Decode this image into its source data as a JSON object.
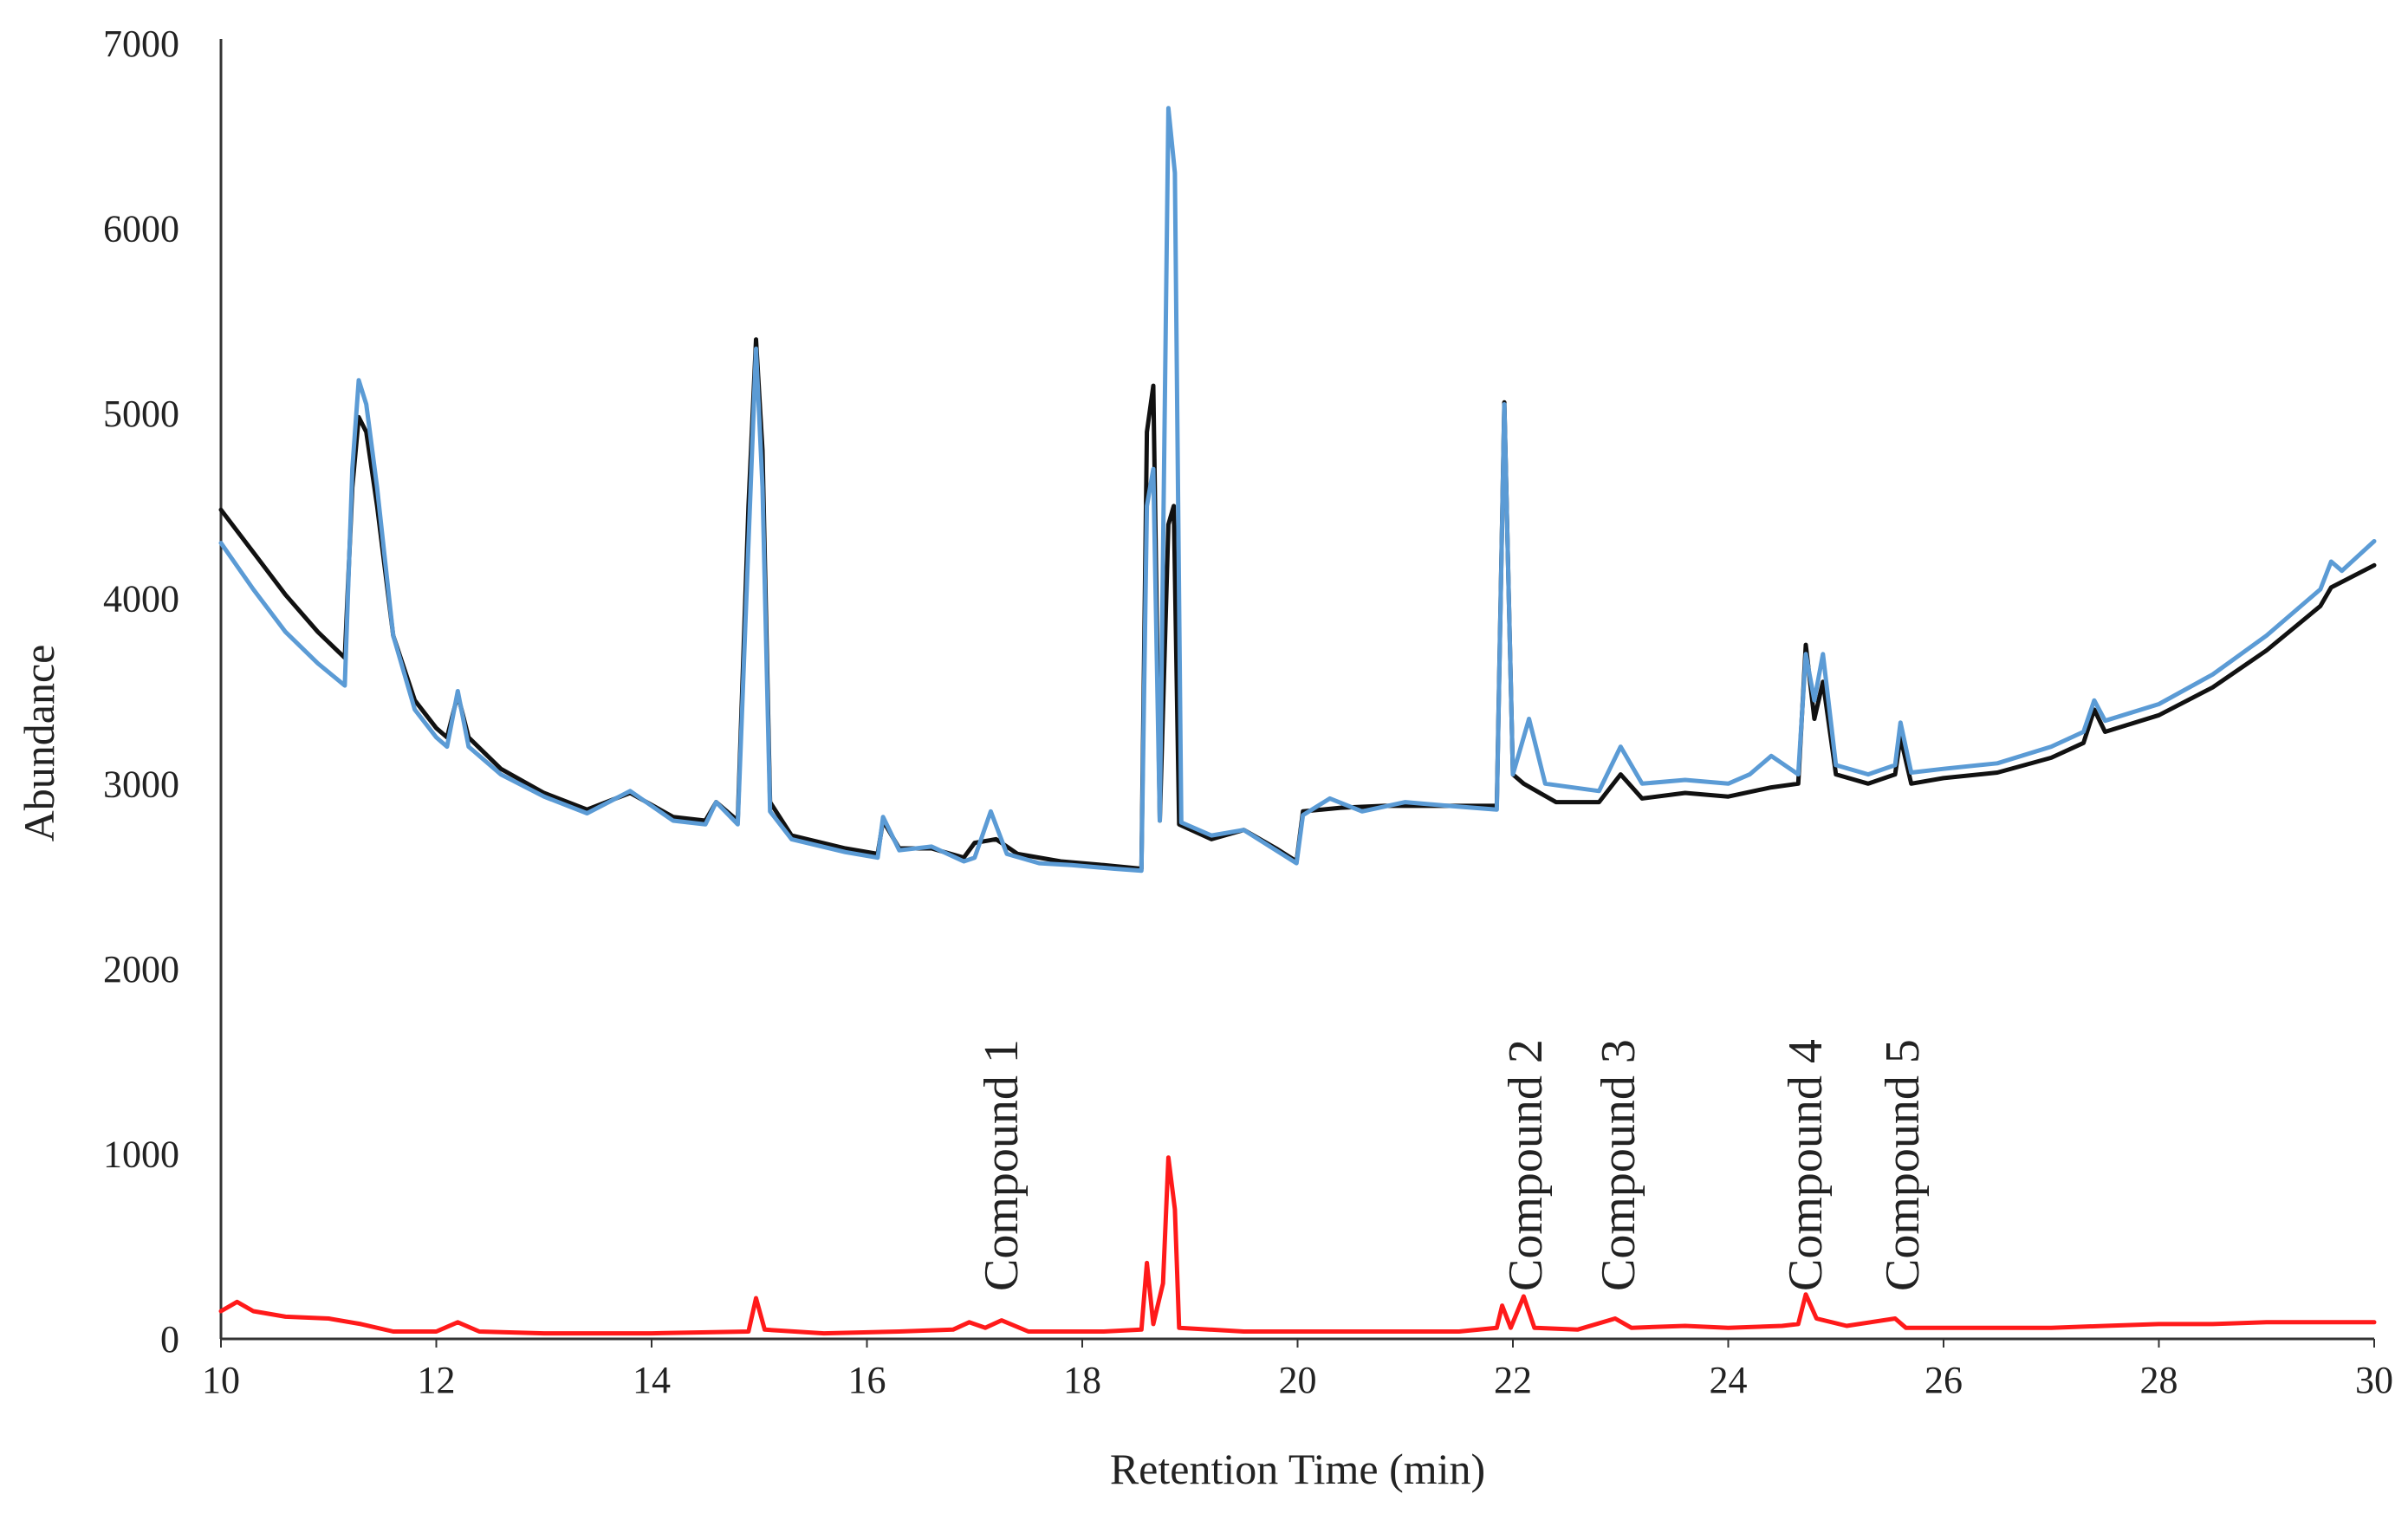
{
  "chart_data": {
    "type": "line",
    "title": "",
    "xlabel": "Retention Time  (min)",
    "ylabel": "Abundance",
    "xlim": [
      10,
      30
    ],
    "ylim": [
      0,
      7000
    ],
    "x_ticks": [
      10,
      12,
      14,
      16,
      18,
      20,
      22,
      24,
      26,
      28,
      30
    ],
    "y_ticks": [
      0,
      1000,
      2000,
      3000,
      4000,
      5000,
      6000,
      7000
    ],
    "grid": false,
    "legend": "none",
    "series": [
      {
        "color": "#111111",
        "points": [
          [
            10.0,
            4480
          ],
          [
            10.3,
            4250
          ],
          [
            10.6,
            4020
          ],
          [
            10.9,
            3820
          ],
          [
            11.15,
            3680
          ],
          [
            11.22,
            4600
          ],
          [
            11.28,
            4980
          ],
          [
            11.35,
            4900
          ],
          [
            11.45,
            4500
          ],
          [
            11.6,
            3800
          ],
          [
            11.8,
            3450
          ],
          [
            12.0,
            3300
          ],
          [
            12.1,
            3250
          ],
          [
            12.2,
            3480
          ],
          [
            12.3,
            3250
          ],
          [
            12.6,
            3080
          ],
          [
            13.0,
            2950
          ],
          [
            13.4,
            2860
          ],
          [
            13.8,
            2950
          ],
          [
            14.2,
            2820
          ],
          [
            14.5,
            2800
          ],
          [
            14.6,
            2900
          ],
          [
            14.8,
            2800
          ],
          [
            14.9,
            4500
          ],
          [
            14.97,
            5400
          ],
          [
            15.03,
            4800
          ],
          [
            15.1,
            2900
          ],
          [
            15.3,
            2720
          ],
          [
            15.8,
            2650
          ],
          [
            16.1,
            2620
          ],
          [
            16.15,
            2800
          ],
          [
            16.3,
            2650
          ],
          [
            16.6,
            2650
          ],
          [
            16.9,
            2600
          ],
          [
            17.0,
            2680
          ],
          [
            17.2,
            2700
          ],
          [
            17.4,
            2620
          ],
          [
            17.8,
            2580
          ],
          [
            18.2,
            2560
          ],
          [
            18.55,
            2540
          ],
          [
            18.6,
            4900
          ],
          [
            18.66,
            5150
          ],
          [
            18.72,
            2800
          ],
          [
            18.8,
            4400
          ],
          [
            18.85,
            4500
          ],
          [
            18.9,
            2780
          ],
          [
            19.2,
            2700
          ],
          [
            19.5,
            2750
          ],
          [
            19.8,
            2650
          ],
          [
            19.99,
            2580
          ],
          [
            20.05,
            2850
          ],
          [
            20.4,
            2870
          ],
          [
            20.8,
            2880
          ],
          [
            21.2,
            2880
          ],
          [
            21.6,
            2880
          ],
          [
            21.85,
            2880
          ],
          [
            21.92,
            5060
          ],
          [
            22.0,
            3050
          ],
          [
            22.1,
            3000
          ],
          [
            22.4,
            2900
          ],
          [
            22.8,
            2900
          ],
          [
            23.0,
            3050
          ],
          [
            23.2,
            2920
          ],
          [
            23.6,
            2950
          ],
          [
            24.0,
            2930
          ],
          [
            24.4,
            2980
          ],
          [
            24.65,
            3000
          ],
          [
            24.72,
            3750
          ],
          [
            24.8,
            3350
          ],
          [
            24.88,
            3550
          ],
          [
            25.0,
            3050
          ],
          [
            25.3,
            3000
          ],
          [
            25.55,
            3050
          ],
          [
            25.6,
            3250
          ],
          [
            25.7,
            3000
          ],
          [
            26.0,
            3030
          ],
          [
            26.5,
            3060
          ],
          [
            27.0,
            3140
          ],
          [
            27.3,
            3220
          ],
          [
            27.4,
            3400
          ],
          [
            27.5,
            3280
          ],
          [
            28.0,
            3370
          ],
          [
            28.5,
            3520
          ],
          [
            29.0,
            3720
          ],
          [
            29.5,
            3960
          ],
          [
            29.6,
            4060
          ],
          [
            30.0,
            4180
          ]
        ]
      },
      {
        "color": "#5b9bd5",
        "points": [
          [
            10.0,
            4300
          ],
          [
            10.3,
            4050
          ],
          [
            10.6,
            3820
          ],
          [
            10.9,
            3650
          ],
          [
            11.15,
            3530
          ],
          [
            11.22,
            4700
          ],
          [
            11.28,
            5180
          ],
          [
            11.35,
            5050
          ],
          [
            11.45,
            4600
          ],
          [
            11.6,
            3800
          ],
          [
            11.8,
            3400
          ],
          [
            12.0,
            3250
          ],
          [
            12.1,
            3200
          ],
          [
            12.2,
            3500
          ],
          [
            12.3,
            3200
          ],
          [
            12.6,
            3050
          ],
          [
            13.0,
            2930
          ],
          [
            13.4,
            2840
          ],
          [
            13.8,
            2960
          ],
          [
            14.2,
            2800
          ],
          [
            14.5,
            2780
          ],
          [
            14.6,
            2900
          ],
          [
            14.8,
            2780
          ],
          [
            14.9,
            4300
          ],
          [
            14.97,
            5350
          ],
          [
            15.03,
            4600
          ],
          [
            15.1,
            2850
          ],
          [
            15.3,
            2700
          ],
          [
            15.8,
            2630
          ],
          [
            16.1,
            2600
          ],
          [
            16.15,
            2820
          ],
          [
            16.3,
            2640
          ],
          [
            16.6,
            2660
          ],
          [
            16.9,
            2580
          ],
          [
            17.0,
            2600
          ],
          [
            17.15,
            2850
          ],
          [
            17.3,
            2620
          ],
          [
            17.6,
            2570
          ],
          [
            17.9,
            2560
          ],
          [
            18.3,
            2540
          ],
          [
            18.55,
            2530
          ],
          [
            18.6,
            4500
          ],
          [
            18.66,
            4700
          ],
          [
            18.72,
            2800
          ],
          [
            18.8,
            6650
          ],
          [
            18.86,
            6300
          ],
          [
            18.92,
            2790
          ],
          [
            19.2,
            2720
          ],
          [
            19.5,
            2750
          ],
          [
            19.8,
            2640
          ],
          [
            19.99,
            2570
          ],
          [
            20.05,
            2830
          ],
          [
            20.3,
            2920
          ],
          [
            20.6,
            2850
          ],
          [
            21.0,
            2900
          ],
          [
            21.4,
            2880
          ],
          [
            21.85,
            2860
          ],
          [
            21.92,
            5050
          ],
          [
            22.0,
            3050
          ],
          [
            22.15,
            3350
          ],
          [
            22.3,
            3000
          ],
          [
            22.8,
            2960
          ],
          [
            23.0,
            3200
          ],
          [
            23.2,
            3000
          ],
          [
            23.6,
            3020
          ],
          [
            24.0,
            3000
          ],
          [
            24.2,
            3050
          ],
          [
            24.4,
            3150
          ],
          [
            24.65,
            3050
          ],
          [
            24.72,
            3700
          ],
          [
            24.8,
            3450
          ],
          [
            24.88,
            3700
          ],
          [
            25.0,
            3100
          ],
          [
            25.3,
            3050
          ],
          [
            25.55,
            3100
          ],
          [
            25.6,
            3330
          ],
          [
            25.7,
            3060
          ],
          [
            26.0,
            3080
          ],
          [
            26.5,
            3110
          ],
          [
            27.0,
            3200
          ],
          [
            27.3,
            3280
          ],
          [
            27.4,
            3450
          ],
          [
            27.5,
            3340
          ],
          [
            28.0,
            3430
          ],
          [
            28.5,
            3590
          ],
          [
            29.0,
            3800
          ],
          [
            29.5,
            4050
          ],
          [
            29.6,
            4200
          ],
          [
            29.7,
            4150
          ],
          [
            30.0,
            4310
          ]
        ]
      },
      {
        "color": "#ff1a1a",
        "points": [
          [
            10.0,
            150
          ],
          [
            10.15,
            200
          ],
          [
            10.3,
            150
          ],
          [
            10.6,
            120
          ],
          [
            11.0,
            110
          ],
          [
            11.3,
            80
          ],
          [
            11.6,
            40
          ],
          [
            12.0,
            40
          ],
          [
            12.2,
            90
          ],
          [
            12.4,
            40
          ],
          [
            13.0,
            30
          ],
          [
            14.0,
            30
          ],
          [
            14.9,
            40
          ],
          [
            14.97,
            220
          ],
          [
            15.05,
            50
          ],
          [
            15.6,
            30
          ],
          [
            16.3,
            40
          ],
          [
            16.8,
            50
          ],
          [
            16.95,
            90
          ],
          [
            17.1,
            60
          ],
          [
            17.25,
            100
          ],
          [
            17.5,
            40
          ],
          [
            18.2,
            40
          ],
          [
            18.55,
            50
          ],
          [
            18.6,
            410
          ],
          [
            18.66,
            80
          ],
          [
            18.75,
            300
          ],
          [
            18.8,
            980
          ],
          [
            18.86,
            700
          ],
          [
            18.9,
            60
          ],
          [
            19.5,
            40
          ],
          [
            20.5,
            40
          ],
          [
            21.5,
            40
          ],
          [
            21.85,
            60
          ],
          [
            21.9,
            180
          ],
          [
            21.98,
            60
          ],
          [
            22.1,
            230
          ],
          [
            22.2,
            60
          ],
          [
            22.6,
            50
          ],
          [
            22.95,
            110
          ],
          [
            23.1,
            60
          ],
          [
            23.6,
            70
          ],
          [
            24.0,
            60
          ],
          [
            24.5,
            70
          ],
          [
            24.65,
            80
          ],
          [
            24.72,
            240
          ],
          [
            24.82,
            110
          ],
          [
            25.1,
            70
          ],
          [
            25.55,
            110
          ],
          [
            25.65,
            60
          ],
          [
            26.0,
            60
          ],
          [
            26.5,
            60
          ],
          [
            27.0,
            60
          ],
          [
            27.5,
            70
          ],
          [
            28.0,
            80
          ],
          [
            28.5,
            80
          ],
          [
            29.0,
            90
          ],
          [
            29.5,
            90
          ],
          [
            30.0,
            90
          ]
        ]
      }
    ],
    "annotations": [
      {
        "text": "Compound 1",
        "x": 17.25
      },
      {
        "text": "Compound 2",
        "x": 22.12
      },
      {
        "text": "Compound 3",
        "x": 22.98
      },
      {
        "text": "Compound 4",
        "x": 24.72
      },
      {
        "text": "Compound 5",
        "x": 25.62
      }
    ]
  }
}
